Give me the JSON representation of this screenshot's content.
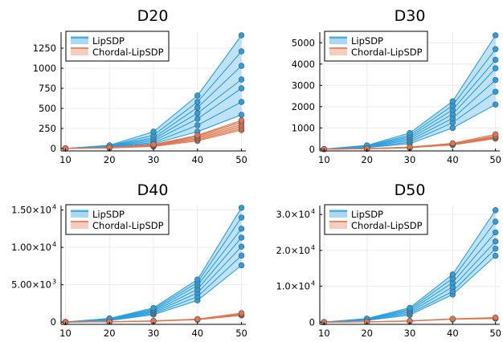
{
  "colors": {
    "lipsdp": "#2a9fde",
    "lipsdp_fill": "#a9d8f3",
    "chordal": "#e0744f",
    "chordal_fill": "#f6cdbf",
    "grid": "#ececec",
    "axis": "#000000"
  },
  "chart_data": [
    {
      "type": "line",
      "title": "D20",
      "x": [
        10,
        20,
        30,
        40,
        50
      ],
      "xticks": [
        10,
        20,
        30,
        40,
        50
      ],
      "ylim": [
        -30,
        1450
      ],
      "yticks": [
        0,
        250,
        500,
        750,
        1000,
        1250
      ],
      "ytick_labels": [
        "0",
        "250",
        "500",
        "750",
        "1000",
        "1250"
      ],
      "legend": [
        "LipSDP",
        "Chordal-LipSDP"
      ],
      "legend_position": "top-left",
      "grid": true,
      "series": [
        {
          "name": "LipSDP",
          "bands": [
            [
              1,
              20,
              60,
              210,
              420
            ],
            [
              1,
              23,
              75,
              290,
              580
            ],
            [
              1,
              26,
              95,
              370,
              750
            ],
            [
              1,
              30,
              115,
              440,
              860
            ],
            [
              1,
              33,
              135,
              510,
              1030
            ],
            [
              1,
              36,
              165,
              580,
              1210
            ],
            [
              1,
              40,
              210,
              660,
              1410
            ]
          ]
        },
        {
          "name": "Chordal-LipSDP",
          "bands": [
            [
              1,
              8,
              25,
              95,
              230
            ],
            [
              1,
              9,
              30,
              110,
              250
            ],
            [
              1,
              10,
              35,
              125,
              275
            ],
            [
              1,
              11,
              40,
              140,
              300
            ],
            [
              1,
              12,
              45,
              155,
              330
            ],
            [
              1,
              13,
              50,
              165,
              350
            ]
          ]
        }
      ]
    },
    {
      "type": "line",
      "title": "D30",
      "x": [
        10,
        20,
        30,
        40,
        50
      ],
      "xticks": [
        10,
        20,
        30,
        40,
        50
      ],
      "ylim": [
        -80,
        5500
      ],
      "yticks": [
        0,
        1000,
        2000,
        3000,
        4000,
        5000
      ],
      "ytick_labels": [
        "0",
        "1000",
        "2000",
        "3000",
        "4000",
        "5000"
      ],
      "legend": [
        "LipSDP",
        "Chordal-LipSDP"
      ],
      "legend_position": "top-left",
      "grid": true,
      "series": [
        {
          "name": "LipSDP",
          "bands": [
            [
              5,
              80,
              260,
              1000,
              2100
            ],
            [
              5,
              95,
              340,
              1250,
              2700
            ],
            [
              5,
              110,
              420,
              1450,
              3250
            ],
            [
              5,
              125,
              500,
              1650,
              3800
            ],
            [
              5,
              140,
              580,
              1850,
              4200
            ],
            [
              5,
              160,
              660,
              2050,
              4700
            ],
            [
              5,
              180,
              760,
              2250,
              5350
            ]
          ]
        },
        {
          "name": "Chordal-LipSDP",
          "bands": [
            [
              3,
              20,
              70,
              200,
              500
            ],
            [
              3,
              22,
              78,
              215,
              540
            ],
            [
              3,
              25,
              85,
              235,
              580
            ],
            [
              3,
              28,
              92,
              255,
              620
            ],
            [
              3,
              31,
              100,
              280,
              700
            ]
          ]
        }
      ]
    },
    {
      "type": "line",
      "title": "D40",
      "x": [
        10,
        20,
        30,
        40,
        50
      ],
      "xticks": [
        10,
        20,
        30,
        40,
        50
      ],
      "ylim": [
        -300,
        15600
      ],
      "yticks": [
        0,
        5000,
        10000,
        15000
      ],
      "ytick_labels": [
        "0",
        "5.00×10",
        "1.00×10",
        "1.50×10"
      ],
      "ytick_exponents": [
        "",
        "3",
        "4",
        "4"
      ],
      "legend": [
        "LipSDP",
        "Chordal-LipSDP"
      ],
      "legend_position": "top-left",
      "grid": true,
      "series": [
        {
          "name": "LipSDP",
          "bands": [
            [
              10,
              200,
              1000,
              2900,
              7600
            ],
            [
              10,
              250,
              1150,
              3400,
              8900
            ],
            [
              10,
              300,
              1300,
              3900,
              10100
            ],
            [
              10,
              350,
              1450,
              4400,
              11300
            ],
            [
              10,
              400,
              1600,
              4900,
              12500
            ],
            [
              10,
              450,
              1750,
              5300,
              14000
            ],
            [
              10,
              500,
              1900,
              5700,
              15300
            ]
          ]
        },
        {
          "name": "Chordal-LipSDP",
          "bands": [
            [
              5,
              40,
              120,
              320,
              900
            ],
            [
              5,
              45,
              135,
              350,
              1000
            ],
            [
              5,
              50,
              150,
              380,
              1100
            ],
            [
              5,
              55,
              165,
              410,
              1200
            ]
          ]
        }
      ]
    },
    {
      "type": "line",
      "title": "D50",
      "x": [
        10,
        20,
        30,
        40,
        50
      ],
      "xticks": [
        10,
        20,
        30,
        40,
        50
      ],
      "ylim": [
        -600,
        32500
      ],
      "yticks": [
        0,
        10000,
        20000,
        30000
      ],
      "ytick_labels": [
        "0",
        "1.0×10",
        "2.0×10",
        "3.0×10"
      ],
      "ytick_exponents": [
        "",
        "4",
        "4",
        "4"
      ],
      "legend": [
        "LipSDP",
        "Chordal-LipSDP"
      ],
      "legend_position": "top-left",
      "grid": true,
      "series": [
        {
          "name": "LipSDP",
          "bands": [
            [
              20,
              500,
              2000,
              7700,
              18500
            ],
            [
              20,
              600,
              2400,
              8600,
              20500
            ],
            [
              20,
              700,
              2800,
              9800,
              22500
            ],
            [
              20,
              800,
              3200,
              11000,
              25000
            ],
            [
              20,
              900,
              3600,
              12200,
              28000
            ],
            [
              20,
              1000,
              4000,
              13300,
              31200
            ]
          ]
        },
        {
          "name": "Chordal-LipSDP",
          "bands": [
            [
              10,
              100,
              300,
              800,
              1000
            ],
            [
              10,
              110,
              330,
              880,
              1150
            ],
            [
              10,
              120,
              360,
              960,
              1300
            ]
          ]
        }
      ]
    }
  ]
}
